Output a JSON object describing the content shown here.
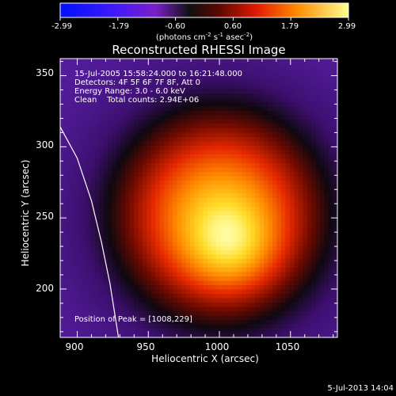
{
  "colorbar": {
    "ticks": [
      "-2.99",
      "-1.79",
      "-0.60",
      "0.60",
      "1.79",
      "2.99"
    ],
    "unit_prefix": "(photons cm",
    "unit_exp1": "-2",
    "unit_mid": " s",
    "unit_exp2": "-1",
    "unit_mid2": " asec",
    "unit_exp3": "-2",
    "unit_suffix": ")"
  },
  "title": "Reconstructed RHESSI Image",
  "annotations": {
    "line1": "15-Jul-2005 15:58:24.000 to 16:21:48.000",
    "line2": "Detectors: 4F 5F 6F 7F 8F, Att 0",
    "line3": "Energy Range: 3.0 - 6.0 keV",
    "line4": "Clean    Total counts: 2.94E+06",
    "peak": "Position of Peak = [1008,229]"
  },
  "footer": "5-Jul-2013 14:04",
  "colors": {
    "background_purple": "#5a1fa0",
    "peak_yellow": "#ffff80",
    "limb_line": "#ffffff"
  },
  "chart_data": {
    "type": "heatmap",
    "title": "Reconstructed RHESSI Image",
    "xlabel": "Heliocentric X (arcsec)",
    "ylabel": "Heliocentric Y (arcsec)",
    "xlim": [
      888,
      1083
    ],
    "ylim": [
      166,
      362
    ],
    "xticks": [
      900,
      950,
      1000,
      1050
    ],
    "yticks": [
      200,
      250,
      300,
      350
    ],
    "colorscale": "linear",
    "colorbar_range": [
      -2.99,
      2.99
    ],
    "peak": [
      1008,
      229
    ],
    "source": {
      "center": [
        1000,
        252
      ],
      "sigma_x": 55,
      "sigma_y": 55
    },
    "limb_curve": [
      [
        888,
        314
      ],
      [
        900,
        292
      ],
      [
        910,
        262
      ],
      [
        917,
        233
      ],
      [
        923,
        204
      ],
      [
        929,
        166
      ]
    ],
    "grid": false
  }
}
